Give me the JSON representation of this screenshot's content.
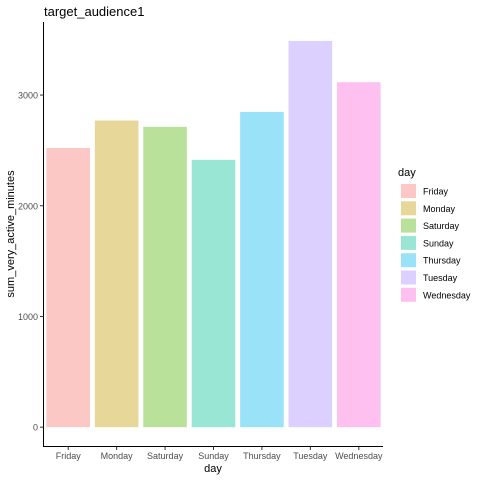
{
  "chart_data": {
    "type": "bar",
    "title": "target_audience1",
    "xlabel": "day",
    "ylabel": "sum_very_active_minutes",
    "categories": [
      "Friday",
      "Monday",
      "Saturday",
      "Sunday",
      "Thursday",
      "Tuesday",
      "Wednesday"
    ],
    "values": [
      2522,
      2770,
      2713,
      2415,
      2848,
      3489,
      3116
    ],
    "colors": [
      "#F8766D",
      "#C49A00",
      "#53B400",
      "#00C094",
      "#00B6EB",
      "#A58AFF",
      "#FB61D7"
    ],
    "bar_opacity": 0.4,
    "yticks": [
      0,
      1000,
      2000,
      3000
    ],
    "ylim": [
      -170,
      3660
    ],
    "grid": false,
    "legend": {
      "title": "day",
      "position": "right",
      "entries": [
        "Friday",
        "Monday",
        "Saturday",
        "Sunday",
        "Thursday",
        "Tuesday",
        "Wednesday"
      ]
    }
  }
}
